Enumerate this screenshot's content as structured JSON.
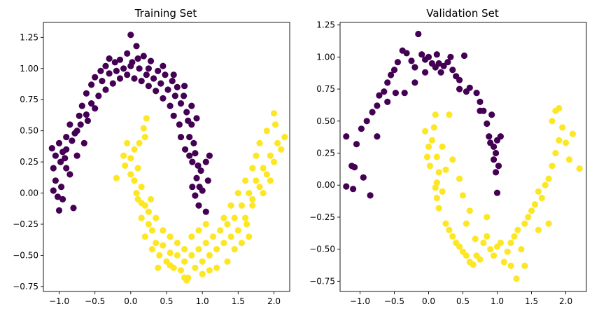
{
  "colors": {
    "class0": "#440154",
    "class1": "#fde725"
  },
  "chart_data": [
    {
      "type": "scatter",
      "title": "Training Set",
      "xlabel": "",
      "ylabel": "",
      "xlim": [
        -1.22,
        2.22
      ],
      "ylim": [
        -0.79,
        1.37
      ],
      "xticks": [
        "-1.0",
        "-0.5",
        "0.0",
        "0.5",
        "1.0",
        "1.5",
        "2.0"
      ],
      "yticks": [
        "-0.75",
        "-0.50",
        "-0.25",
        "0.00",
        "0.25",
        "0.50",
        "0.75",
        "1.00",
        "1.25"
      ],
      "grid": false,
      "legend": "none",
      "points_class0": [
        [
          -1.1,
          0.36
        ],
        [
          -1.05,
          0.3
        ],
        [
          -1.08,
          0.2
        ],
        [
          -1.0,
          0.4
        ],
        [
          -0.95,
          0.33
        ],
        [
          -1.05,
          0.1
        ],
        [
          -1.08,
          0.02
        ],
        [
          -0.98,
          0.25
        ],
        [
          -0.9,
          0.2
        ],
        [
          -0.97,
          0.05
        ],
        [
          -1.02,
          -0.03
        ],
        [
          -0.95,
          -0.05
        ],
        [
          -1.0,
          -0.14
        ],
        [
          -0.8,
          -0.12
        ],
        [
          -0.85,
          0.15
        ],
        [
          -0.9,
          0.35
        ],
        [
          -0.82,
          0.42
        ],
        [
          -0.75,
          0.5
        ],
        [
          -0.72,
          0.62
        ],
        [
          -0.68,
          0.7
        ],
        [
          -0.62,
          0.8
        ],
        [
          -0.55,
          0.87
        ],
        [
          -0.5,
          0.93
        ],
        [
          -0.42,
          0.98
        ],
        [
          -0.35,
          1.02
        ],
        [
          -0.3,
          0.96
        ],
        [
          -0.22,
          1.05
        ],
        [
          -0.15,
          1.07
        ],
        [
          -0.1,
          1.0
        ],
        [
          -0.05,
          1.12
        ],
        [
          0.0,
          1.27
        ],
        [
          0.02,
          1.05
        ],
        [
          0.08,
          1.18
        ],
        [
          0.12,
          1.0
        ],
        [
          0.18,
          1.1
        ],
        [
          0.22,
          0.95
        ],
        [
          0.28,
          1.06
        ],
        [
          0.32,
          0.92
        ],
        [
          0.38,
          0.98
        ],
        [
          0.42,
          0.88
        ],
        [
          0.48,
          0.95
        ],
        [
          0.52,
          0.83
        ],
        [
          0.58,
          0.9
        ],
        [
          0.62,
          0.78
        ],
        [
          0.65,
          0.85
        ],
        [
          0.7,
          0.72
        ],
        [
          0.74,
          0.78
        ],
        [
          0.78,
          0.65
        ],
        [
          0.8,
          0.58
        ],
        [
          0.85,
          0.55
        ],
        [
          0.82,
          0.45
        ],
        [
          0.88,
          0.4
        ],
        [
          0.9,
          0.32
        ],
        [
          0.86,
          0.25
        ],
        [
          0.94,
          0.22
        ],
        [
          0.98,
          0.18
        ],
        [
          0.92,
          0.12
        ],
        [
          0.96,
          0.05
        ],
        [
          1.0,
          0.02
        ],
        [
          0.9,
          -0.02
        ],
        [
          0.95,
          -0.1
        ],
        [
          1.05,
          -0.15
        ],
        [
          1.1,
          0.3
        ],
        [
          1.05,
          0.25
        ],
        [
          0.82,
          0.3
        ],
        [
          0.76,
          0.35
        ],
        [
          0.7,
          0.45
        ],
        [
          0.68,
          0.55
        ],
        [
          0.6,
          0.62
        ],
        [
          0.55,
          0.7
        ],
        [
          0.45,
          0.76
        ],
        [
          0.35,
          0.82
        ],
        [
          0.25,
          0.86
        ],
        [
          0.15,
          0.9
        ],
        [
          0.05,
          0.92
        ],
        [
          -0.05,
          0.95
        ],
        [
          -0.15,
          0.92
        ],
        [
          -0.25,
          0.88
        ],
        [
          -0.35,
          0.83
        ],
        [
          -0.45,
          0.78
        ],
        [
          -0.55,
          0.72
        ],
        [
          -0.62,
          0.63
        ],
        [
          -0.7,
          0.55
        ],
        [
          -0.78,
          0.48
        ],
        [
          -0.85,
          0.55
        ],
        [
          -0.9,
          0.45
        ],
        [
          -0.92,
          0.28
        ],
        [
          -0.75,
          0.3
        ],
        [
          -0.65,
          0.4
        ],
        [
          -0.6,
          0.58
        ],
        [
          -0.5,
          0.68
        ],
        [
          -0.4,
          0.9
        ],
        [
          -0.3,
          1.08
        ],
        [
          -0.2,
          0.98
        ],
        [
          0.0,
          1.02
        ],
        [
          0.1,
          1.08
        ],
        [
          0.25,
          1.0
        ],
        [
          0.45,
          1.02
        ],
        [
          0.6,
          0.95
        ],
        [
          0.75,
          0.86
        ],
        [
          0.85,
          0.7
        ],
        [
          0.92,
          0.6
        ],
        [
          0.86,
          0.05
        ],
        [
          1.08,
          0.1
        ]
      ],
      "points_class1": [
        [
          -0.2,
          0.12
        ],
        [
          -0.1,
          0.3
        ],
        [
          -0.05,
          0.4
        ],
        [
          0.0,
          0.28
        ],
        [
          0.05,
          0.35
        ],
        [
          0.1,
          0.2
        ],
        [
          0.05,
          0.1
        ],
        [
          0.15,
          0.05
        ],
        [
          0.1,
          -0.05
        ],
        [
          0.2,
          -0.1
        ],
        [
          0.15,
          -0.2
        ],
        [
          0.25,
          -0.25
        ],
        [
          0.2,
          -0.35
        ],
        [
          0.3,
          -0.3
        ],
        [
          0.35,
          -0.4
        ],
        [
          0.4,
          -0.5
        ],
        [
          0.45,
          -0.42
        ],
        [
          0.5,
          -0.55
        ],
        [
          0.55,
          -0.48
        ],
        [
          0.6,
          -0.6
        ],
        [
          0.65,
          -0.5
        ],
        [
          0.7,
          -0.62
        ],
        [
          0.75,
          -0.55
        ],
        [
          0.8,
          -0.68
        ],
        [
          0.85,
          -0.5
        ],
        [
          0.9,
          -0.6
        ],
        [
          0.95,
          -0.45
        ],
        [
          1.0,
          -0.55
        ],
        [
          1.05,
          -0.4
        ],
        [
          1.1,
          -0.5
        ],
        [
          1.15,
          -0.35
        ],
        [
          1.2,
          -0.45
        ],
        [
          1.25,
          -0.3
        ],
        [
          1.3,
          -0.4
        ],
        [
          1.35,
          -0.25
        ],
        [
          1.4,
          -0.35
        ],
        [
          1.45,
          -0.2
        ],
        [
          1.5,
          -0.3
        ],
        [
          1.55,
          -0.1
        ],
        [
          1.6,
          -0.2
        ],
        [
          1.65,
          0.0
        ],
        [
          1.7,
          -0.1
        ],
        [
          1.75,
          0.1
        ],
        [
          1.8,
          0.05
        ],
        [
          1.85,
          0.2
        ],
        [
          1.9,
          0.15
        ],
        [
          1.95,
          0.3
        ],
        [
          2.0,
          0.25
        ],
        [
          2.05,
          0.4
        ],
        [
          2.1,
          0.35
        ],
        [
          2.02,
          0.55
        ],
        [
          2.0,
          0.64
        ],
        [
          1.9,
          0.5
        ],
        [
          1.8,
          0.4
        ],
        [
          1.75,
          0.3
        ],
        [
          1.7,
          0.2
        ],
        [
          1.6,
          0.1
        ],
        [
          1.5,
          0.0
        ],
        [
          1.4,
          -0.1
        ],
        [
          1.3,
          -0.2
        ],
        [
          1.2,
          -0.6
        ],
        [
          1.1,
          -0.62
        ],
        [
          1.0,
          -0.65
        ],
        [
          0.78,
          -0.7
        ],
        [
          0.75,
          -0.68
        ],
        [
          0.55,
          -0.58
        ],
        [
          0.3,
          -0.45
        ],
        [
          0.25,
          -0.15
        ],
        [
          0.35,
          -0.2
        ],
        [
          0.45,
          -0.3
        ],
        [
          0.55,
          -0.35
        ],
        [
          0.65,
          -0.4
        ],
        [
          0.75,
          -0.45
        ],
        [
          0.85,
          -0.35
        ],
        [
          0.95,
          -0.3
        ],
        [
          1.05,
          -0.25
        ],
        [
          0.2,
          0.45
        ],
        [
          0.22,
          0.6
        ],
        [
          0.18,
          0.52
        ],
        [
          0.12,
          0.4
        ],
        [
          -0.08,
          0.22
        ],
        [
          0.0,
          0.15
        ],
        [
          0.08,
          0.0
        ],
        [
          0.15,
          -0.08
        ],
        [
          0.28,
          -0.05
        ],
        [
          1.35,
          -0.55
        ],
        [
          1.45,
          -0.45
        ],
        [
          1.55,
          -0.4
        ],
        [
          1.62,
          -0.25
        ],
        [
          1.7,
          -0.05
        ],
        [
          1.85,
          0.0
        ],
        [
          2.15,
          0.45
        ],
        [
          1.95,
          0.1
        ],
        [
          1.65,
          -0.35
        ],
        [
          0.38,
          -0.6
        ]
      ]
    },
    {
      "type": "scatter",
      "title": "Validation Set",
      "xlabel": "",
      "ylabel": "",
      "xlim": [
        -1.29,
        2.3
      ],
      "ylim": [
        -0.83,
        1.27
      ],
      "xticks": [
        "-1.0",
        "-0.5",
        "0.0",
        "0.5",
        "1.0",
        "1.5",
        "2.0"
      ],
      "yticks": [
        "-0.75",
        "-0.50",
        "-0.25",
        "0.00",
        "0.25",
        "0.50",
        "0.75",
        "1.00",
        "1.25"
      ],
      "grid": false,
      "legend": "none",
      "points_class0": [
        [
          -1.2,
          0.38
        ],
        [
          -1.12,
          0.15
        ],
        [
          -1.08,
          0.14
        ],
        [
          -1.05,
          0.32
        ],
        [
          -0.98,
          0.44
        ],
        [
          -1.1,
          -0.03
        ],
        [
          -1.2,
          -0.01
        ],
        [
          -0.95,
          0.06
        ],
        [
          -0.85,
          -0.08
        ],
        [
          -0.9,
          0.5
        ],
        [
          -0.82,
          0.57
        ],
        [
          -0.75,
          0.62
        ],
        [
          -0.72,
          0.7
        ],
        [
          -0.65,
          0.73
        ],
        [
          -0.6,
          0.8
        ],
        [
          -0.55,
          0.86
        ],
        [
          -0.5,
          0.9
        ],
        [
          -0.45,
          0.96
        ],
        [
          -0.38,
          1.05
        ],
        [
          -0.32,
          1.03
        ],
        [
          -0.25,
          0.97
        ],
        [
          -0.2,
          0.92
        ],
        [
          -0.15,
          1.18
        ],
        [
          -0.1,
          1.02
        ],
        [
          -0.05,
          0.98
        ],
        [
          0.0,
          1.0
        ],
        [
          0.05,
          0.95
        ],
        [
          0.1,
          0.92
        ],
        [
          0.12,
          1.02
        ],
        [
          0.18,
          0.88
        ],
        [
          0.22,
          0.93
        ],
        [
          0.28,
          0.96
        ],
        [
          0.32,
          1.0
        ],
        [
          0.4,
          0.85
        ],
        [
          0.45,
          0.82
        ],
        [
          0.52,
          1.01
        ],
        [
          0.55,
          0.73
        ],
        [
          0.6,
          0.76
        ],
        [
          0.7,
          0.72
        ],
        [
          0.75,
          0.65
        ],
        [
          0.8,
          0.58
        ],
        [
          0.85,
          0.48
        ],
        [
          0.88,
          0.38
        ],
        [
          0.9,
          0.33
        ],
        [
          0.95,
          0.3
        ],
        [
          1.0,
          0.35
        ],
        [
          1.05,
          0.38
        ],
        [
          0.98,
          0.25
        ],
        [
          0.95,
          0.2
        ],
        [
          1.02,
          0.15
        ],
        [
          0.98,
          0.1
        ],
        [
          1.0,
          -0.06
        ],
        [
          0.92,
          0.55
        ],
        [
          0.75,
          0.58
        ],
        [
          0.45,
          0.75
        ],
        [
          0.35,
          0.9
        ],
        [
          -0.05,
          0.88
        ],
        [
          -0.2,
          0.8
        ],
        [
          -0.35,
          0.72
        ],
        [
          -0.48,
          0.72
        ],
        [
          -0.6,
          0.65
        ],
        [
          -0.75,
          0.38
        ],
        [
          0.15,
          0.95
        ]
      ],
      "points_class1": [
        [
          -0.05,
          0.42
        ],
        [
          0.0,
          0.3
        ],
        [
          0.02,
          0.15
        ],
        [
          0.05,
          0.35
        ],
        [
          0.08,
          0.45
        ],
        [
          0.1,
          0.55
        ],
        [
          0.12,
          0.22
        ],
        [
          0.15,
          0.1
        ],
        [
          0.1,
          -0.02
        ],
        [
          0.12,
          -0.1
        ],
        [
          0.15,
          -0.18
        ],
        [
          0.2,
          -0.05
        ],
        [
          0.25,
          -0.3
        ],
        [
          0.3,
          -0.35
        ],
        [
          0.35,
          -0.4
        ],
        [
          0.4,
          -0.45
        ],
        [
          0.45,
          -0.48
        ],
        [
          0.5,
          -0.52
        ],
        [
          0.55,
          -0.55
        ],
        [
          0.6,
          -0.6
        ],
        [
          0.65,
          -0.62
        ],
        [
          0.7,
          -0.55
        ],
        [
          0.75,
          -0.58
        ],
        [
          0.8,
          -0.45
        ],
        [
          0.85,
          -0.4
        ],
        [
          0.9,
          -0.5
        ],
        [
          0.95,
          -0.55
        ],
        [
          1.0,
          -0.48
        ],
        [
          1.05,
          -0.45
        ],
        [
          1.1,
          -0.6
        ],
        [
          1.15,
          -0.52
        ],
        [
          1.2,
          -0.45
        ],
        [
          1.25,
          -0.4
        ],
        [
          1.28,
          -0.73
        ],
        [
          1.3,
          -0.35
        ],
        [
          1.35,
          -0.5
        ],
        [
          1.4,
          -0.3
        ],
        [
          1.45,
          -0.25
        ],
        [
          1.5,
          -0.2
        ],
        [
          1.55,
          -0.15
        ],
        [
          1.6,
          -0.05
        ],
        [
          1.65,
          -0.1
        ],
        [
          1.7,
          0.0
        ],
        [
          1.75,
          0.05
        ],
        [
          1.8,
          0.15
        ],
        [
          1.85,
          0.25
        ],
        [
          1.9,
          0.35
        ],
        [
          1.95,
          0.45
        ],
        [
          2.0,
          0.33
        ],
        [
          2.05,
          0.2
        ],
        [
          2.1,
          0.4
        ],
        [
          2.2,
          0.13
        ],
        [
          1.85,
          0.58
        ],
        [
          1.9,
          0.6
        ],
        [
          1.8,
          0.5
        ],
        [
          1.75,
          -0.3
        ],
        [
          1.6,
          -0.35
        ],
        [
          1.4,
          -0.63
        ],
        [
          1.2,
          -0.63
        ],
        [
          0.3,
          0.55
        ],
        [
          0.45,
          0.05
        ],
        [
          0.5,
          -0.08
        ],
        [
          0.6,
          -0.2
        ],
        [
          0.55,
          -0.3
        ],
        [
          0.2,
          0.3
        ],
        [
          -0.02,
          0.22
        ],
        [
          0.25,
          0.12
        ],
        [
          0.35,
          0.2
        ],
        [
          0.12,
          0.02
        ],
        [
          0.68,
          -0.42
        ],
        [
          0.85,
          -0.25
        ]
      ]
    }
  ]
}
